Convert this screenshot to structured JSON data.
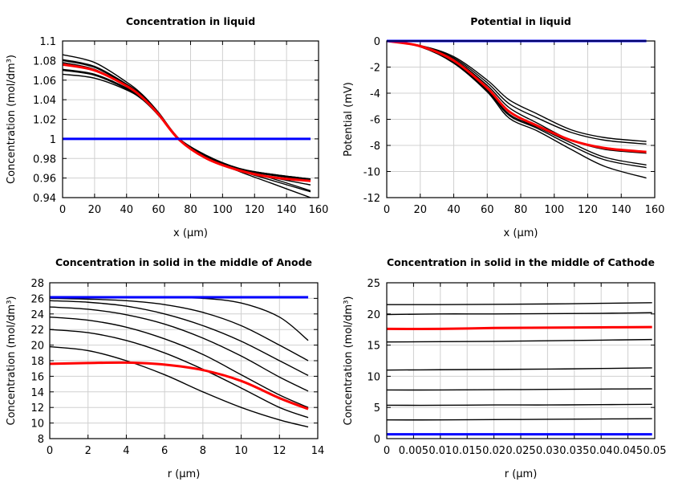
{
  "chart_data": [
    {
      "type": "line",
      "title": "Concentration in liquid",
      "xlabel": "x (μm)",
      "ylabel": "Concentration (mol/dm³)",
      "xlim": [
        0,
        160
      ],
      "ylim": [
        0.94,
        1.1
      ],
      "xticks": [
        0,
        20,
        40,
        60,
        80,
        100,
        120,
        140,
        160
      ],
      "xtick_labels": [
        "0",
        "20",
        "40",
        "60",
        "80",
        "100",
        "120",
        "140",
        "160"
      ],
      "yticks": [
        0.94,
        0.96,
        0.98,
        1.0,
        1.02,
        1.04,
        1.06,
        1.08,
        1.1
      ],
      "ytick_labels": [
        "0.94",
        "0.96",
        "0.98",
        "1",
        "1.02",
        "1.04",
        "1.06",
        "1.08",
        "1.1"
      ],
      "grid": true,
      "x": [
        0,
        20,
        40,
        50,
        60,
        73,
        90,
        110,
        130,
        155
      ],
      "series": [
        {
          "color": "#000000",
          "values": [
            1.086,
            1.078,
            1.058,
            1.045,
            1.027,
            1.0,
            0.981,
            0.967,
            0.955,
            0.94
          ]
        },
        {
          "color": "#000000",
          "values": [
            1.081,
            1.074,
            1.056,
            1.044,
            1.026,
            1.0,
            0.982,
            0.968,
            0.958,
            0.946
          ]
        },
        {
          "color": "#000000",
          "values": [
            1.08,
            1.073,
            1.055,
            1.043,
            1.026,
            1.0,
            0.982,
            0.968,
            0.96,
            0.947
          ]
        },
        {
          "color": "#000000",
          "values": [
            1.078,
            1.071,
            1.054,
            1.042,
            1.025,
            1.0,
            0.982,
            0.969,
            0.961,
            0.953
          ]
        },
        {
          "color": "#000000",
          "values": [
            1.071,
            1.066,
            1.052,
            1.041,
            1.024,
            1.0,
            0.983,
            0.969,
            0.963,
            0.958
          ]
        },
        {
          "color": "#000000",
          "values": [
            1.07,
            1.065,
            1.051,
            1.041,
            1.024,
            1.0,
            0.983,
            0.97,
            0.964,
            0.959
          ]
        },
        {
          "color": "#000000",
          "values": [
            1.066,
            1.062,
            1.05,
            1.04,
            1.024,
            1.0,
            0.983,
            0.97,
            0.964,
            0.959
          ]
        },
        {
          "color": "#ff0000",
          "values": [
            1.076,
            1.07,
            1.054,
            1.042,
            1.025,
            0.999,
            0.98,
            0.968,
            0.961,
            0.957
          ]
        },
        {
          "color": "#0000ff",
          "values": [
            1.0,
            1.0,
            1.0,
            1.0,
            1.0,
            1.0,
            1.0,
            1.0,
            1.0,
            1.0
          ]
        }
      ]
    },
    {
      "type": "line",
      "title": "Potential in liquid",
      "xlabel": "x (μm)",
      "ylabel": "Potential (mV)",
      "xlim": [
        0,
        160
      ],
      "ylim": [
        -12,
        0
      ],
      "xticks": [
        0,
        20,
        40,
        60,
        80,
        100,
        120,
        140,
        160
      ],
      "xtick_labels": [
        "0",
        "20",
        "40",
        "60",
        "80",
        "100",
        "120",
        "140",
        "160"
      ],
      "yticks": [
        -12,
        -10,
        -8,
        -6,
        -4,
        -2,
        0
      ],
      "ytick_labels": [
        "-12",
        "-10",
        "-8",
        "-6",
        "-4",
        "-2",
        "0"
      ],
      "grid": true,
      "x": [
        0,
        20,
        40,
        60,
        73,
        90,
        110,
        130,
        155
      ],
      "series": [
        {
          "color": "#000000",
          "values": [
            0,
            -0.35,
            -1.2,
            -3.0,
            -4.5,
            -5.6,
            -6.8,
            -7.4,
            -7.7
          ]
        },
        {
          "color": "#000000",
          "values": [
            0,
            -0.37,
            -1.3,
            -3.2,
            -4.8,
            -5.9,
            -7.0,
            -7.6,
            -7.9
          ]
        },
        {
          "color": "#000000",
          "values": [
            0,
            -0.38,
            -1.4,
            -3.4,
            -5.1,
            -6.3,
            -7.6,
            -8.3,
            -8.6
          ]
        },
        {
          "color": "#000000",
          "values": [
            0,
            -0.4,
            -1.5,
            -3.7,
            -5.6,
            -6.6,
            -7.8,
            -8.9,
            -9.5
          ]
        },
        {
          "color": "#000000",
          "values": [
            0,
            -0.42,
            -1.6,
            -3.8,
            -5.7,
            -6.7,
            -8.0,
            -9.1,
            -9.7
          ]
        },
        {
          "color": "#000000",
          "values": [
            0,
            -0.45,
            -1.7,
            -3.9,
            -5.9,
            -6.9,
            -8.3,
            -9.6,
            -10.5
          ]
        },
        {
          "color": "#ff0000",
          "values": [
            0,
            -0.4,
            -1.5,
            -3.6,
            -5.4,
            -6.5,
            -7.6,
            -8.2,
            -8.5
          ]
        },
        {
          "color": "#0000ff",
          "values": [
            0,
            0,
            0,
            0,
            0,
            0,
            0,
            0,
            0
          ]
        }
      ]
    },
    {
      "type": "line",
      "title": "Concentration in solid in the middle of Anode",
      "xlabel": "r (μm)",
      "ylabel": "Concentration (mol/dm³)",
      "xlim": [
        0,
        14
      ],
      "ylim": [
        8,
        28
      ],
      "xticks": [
        0,
        2,
        4,
        6,
        8,
        10,
        12,
        14
      ],
      "xtick_labels": [
        "0",
        "2",
        "4",
        "6",
        "8",
        "10",
        "12",
        "14"
      ],
      "yticks": [
        8,
        10,
        12,
        14,
        16,
        18,
        20,
        22,
        24,
        26,
        28
      ],
      "ytick_labels": [
        "8",
        "10",
        "12",
        "14",
        "16",
        "18",
        "20",
        "22",
        "24",
        "26",
        "28"
      ],
      "grid": true,
      "x": [
        0,
        2,
        4,
        6,
        8,
        10,
        12,
        13.5
      ],
      "series": [
        {
          "color": "#000000",
          "values": [
            26.15,
            26.15,
            26.15,
            26.1,
            26.0,
            25.4,
            23.6,
            20.6
          ]
        },
        {
          "color": "#000000",
          "values": [
            26.0,
            25.9,
            25.7,
            25.2,
            24.2,
            22.5,
            20.0,
            18.0
          ]
        },
        {
          "color": "#000000",
          "values": [
            25.7,
            25.5,
            25.0,
            24.0,
            22.5,
            20.5,
            18.0,
            16.1
          ]
        },
        {
          "color": "#000000",
          "values": [
            24.9,
            24.6,
            23.9,
            22.7,
            20.9,
            18.6,
            15.9,
            14.1
          ]
        },
        {
          "color": "#000000",
          "values": [
            23.6,
            23.2,
            22.3,
            20.8,
            18.8,
            16.2,
            13.6,
            12.0
          ]
        },
        {
          "color": "#000000",
          "values": [
            22.0,
            21.6,
            20.6,
            19.0,
            16.9,
            14.5,
            12.0,
            10.7
          ]
        },
        {
          "color": "#000000",
          "values": [
            19.8,
            19.3,
            18.0,
            16.2,
            14.0,
            12.0,
            10.4,
            9.5
          ]
        },
        {
          "color": "#ff0000",
          "values": [
            17.6,
            17.7,
            17.75,
            17.5,
            16.8,
            15.4,
            13.2,
            11.8
          ]
        },
        {
          "color": "#0000ff",
          "values": [
            26.15,
            26.15,
            26.15,
            26.15,
            26.15,
            26.15,
            26.15,
            26.15
          ]
        }
      ]
    },
    {
      "type": "line",
      "title": "Concentration in solid in the middle of Cathode",
      "xlabel": "r (μm)",
      "ylabel": "Concentration (mol/dm³)",
      "xlim": [
        0,
        0.05
      ],
      "ylim": [
        0,
        25
      ],
      "xticks": [
        0,
        0.005,
        0.01,
        0.015,
        0.02,
        0.025,
        0.03,
        0.035,
        0.04,
        0.045,
        0.05
      ],
      "xtick_labels": [
        "0",
        "0.005",
        "0.01",
        "0.015",
        "0.02",
        "0.025",
        "0.03",
        "0.035",
        "0.04",
        "0.045",
        "0.05"
      ],
      "yticks": [
        0,
        5,
        10,
        15,
        20,
        25
      ],
      "ytick_labels": [
        "0",
        "5",
        "10",
        "15",
        "20",
        "25"
      ],
      "grid": true,
      "x": [
        0,
        0.01,
        0.02,
        0.03,
        0.04,
        0.0495
      ],
      "series": [
        {
          "color": "#000000",
          "values": [
            21.5,
            21.5,
            21.55,
            21.6,
            21.7,
            21.8
          ]
        },
        {
          "color": "#000000",
          "values": [
            19.9,
            20.0,
            20.0,
            20.05,
            20.1,
            20.2
          ]
        },
        {
          "color": "#000000",
          "values": [
            15.5,
            15.55,
            15.6,
            15.7,
            15.8,
            15.9
          ]
        },
        {
          "color": "#000000",
          "values": [
            11.0,
            11.05,
            11.1,
            11.15,
            11.25,
            11.35
          ]
        },
        {
          "color": "#000000",
          "values": [
            7.8,
            7.8,
            7.85,
            7.9,
            7.95,
            8.0
          ]
        },
        {
          "color": "#000000",
          "values": [
            5.35,
            5.35,
            5.4,
            5.4,
            5.45,
            5.5
          ]
        },
        {
          "color": "#000000",
          "values": [
            3.0,
            3.0,
            3.05,
            3.1,
            3.15,
            3.2
          ]
        },
        {
          "color": "#ff0000",
          "values": [
            17.6,
            17.6,
            17.75,
            17.8,
            17.85,
            17.9
          ]
        },
        {
          "color": "#0000ff",
          "values": [
            0.7,
            0.7,
            0.7,
            0.7,
            0.7,
            0.7
          ]
        }
      ]
    }
  ]
}
